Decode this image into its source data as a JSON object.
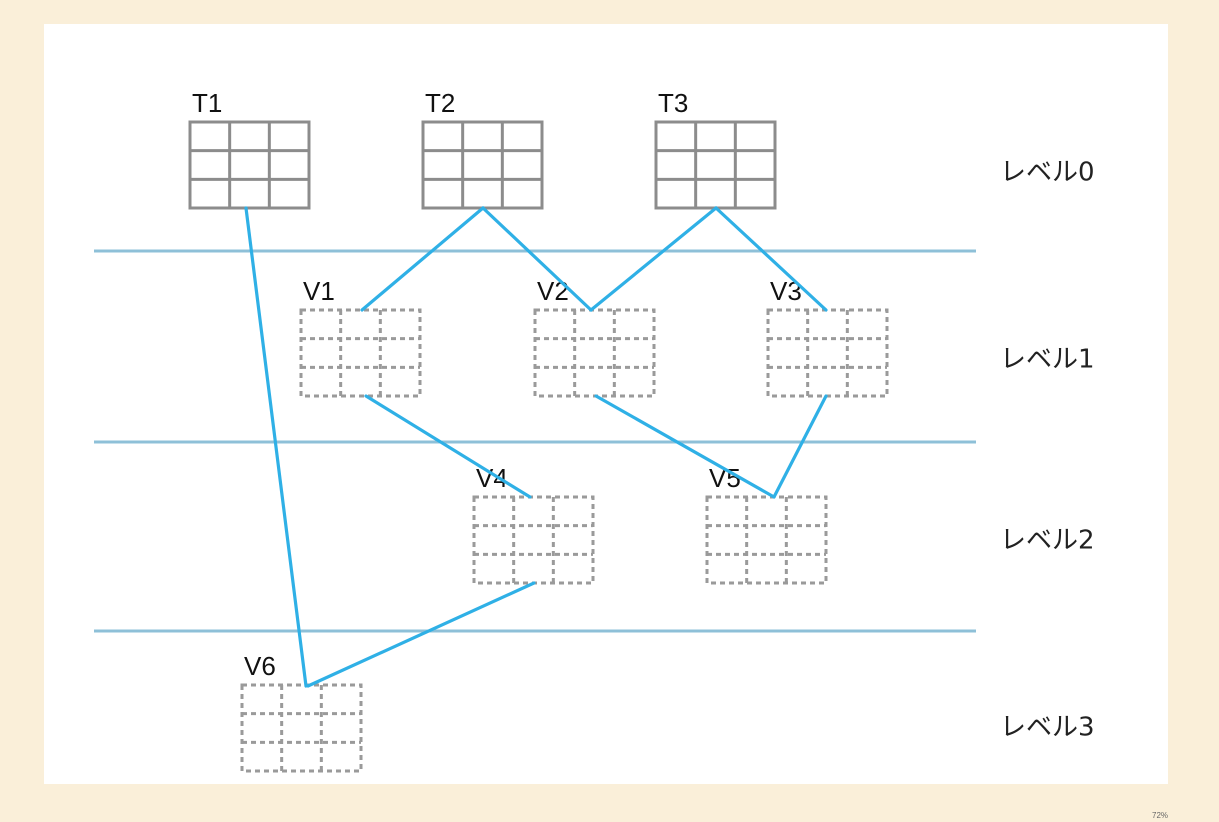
{
  "colors": {
    "background": "#faefd9",
    "canvas": "#ffffff",
    "level_line": "#8ec0d8",
    "edge": "#2fb0e6",
    "table_stroke": "#8c8c8c",
    "view_stroke": "#9a9a9a"
  },
  "levels": [
    {
      "label": "レベル0"
    },
    {
      "label": "レベル1"
    },
    {
      "label": "レベル2"
    },
    {
      "label": "レベル3"
    }
  ],
  "nodes": [
    {
      "id": "T1",
      "label": "T1",
      "kind": "table",
      "level": 0
    },
    {
      "id": "T2",
      "label": "T2",
      "kind": "table",
      "level": 0
    },
    {
      "id": "T3",
      "label": "T3",
      "kind": "table",
      "level": 0
    },
    {
      "id": "V1",
      "label": "V1",
      "kind": "view",
      "level": 1
    },
    {
      "id": "V2",
      "label": "V2",
      "kind": "view",
      "level": 1
    },
    {
      "id": "V3",
      "label": "V3",
      "kind": "view",
      "level": 1
    },
    {
      "id": "V4",
      "label": "V4",
      "kind": "view",
      "level": 2
    },
    {
      "id": "V5",
      "label": "V5",
      "kind": "view",
      "level": 2
    },
    {
      "id": "V6",
      "label": "V6",
      "kind": "view",
      "level": 3
    }
  ],
  "edges": [
    {
      "from": "T2",
      "to": "V1"
    },
    {
      "from": "T2",
      "to": "V2"
    },
    {
      "from": "T3",
      "to": "V2"
    },
    {
      "from": "T3",
      "to": "V3"
    },
    {
      "from": "V1",
      "to": "V4"
    },
    {
      "from": "V2",
      "to": "V5"
    },
    {
      "from": "V3",
      "to": "V5"
    },
    {
      "from": "T1",
      "to": "V6"
    },
    {
      "from": "V4",
      "to": "V6"
    }
  ],
  "footer": {
    "zoom": "72%"
  }
}
